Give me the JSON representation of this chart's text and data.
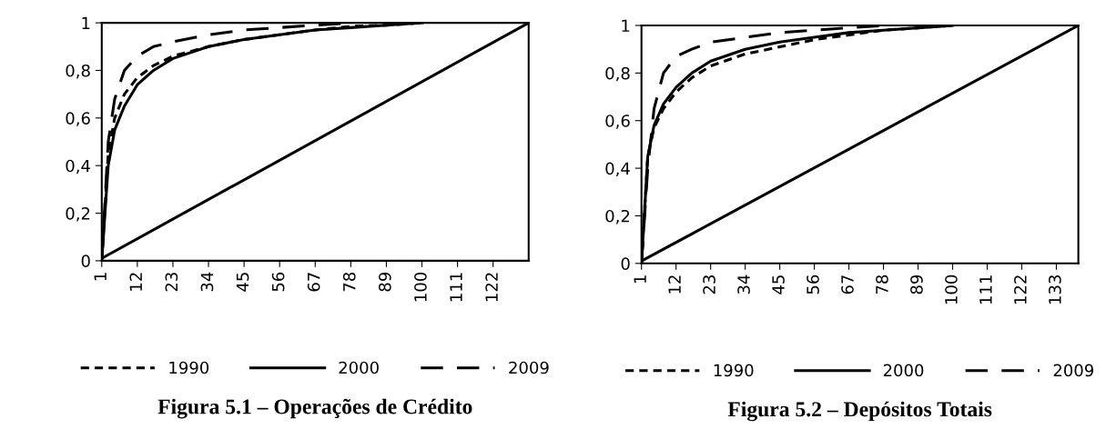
{
  "chart_data": [
    {
      "type": "line",
      "title": "Figura 5.1 – Operações de Crédito",
      "xlim": [
        1,
        133
      ],
      "ylim": [
        0,
        1
      ],
      "xticks": [
        1,
        12,
        23,
        34,
        45,
        56,
        67,
        78,
        89,
        100,
        111,
        122
      ],
      "yticks": [
        {
          "value": 0,
          "label": "0"
        },
        {
          "value": 0.2,
          "label": "0,2"
        },
        {
          "value": 0.4,
          "label": "0,4"
        },
        {
          "value": 0.6,
          "label": "0,6"
        },
        {
          "value": 0.8,
          "label": "0,8"
        },
        {
          "value": 1,
          "label": "1"
        }
      ],
      "grid": false,
      "legend": "bottom",
      "marker": "none",
      "series": [
        {
          "name": "1990",
          "color": "#000000",
          "line_style": "dotted",
          "x": [
            1,
            3,
            5,
            8,
            12,
            17,
            23,
            34,
            45,
            56,
            67,
            78,
            89,
            100
          ],
          "values": [
            0,
            0.45,
            0.6,
            0.7,
            0.77,
            0.82,
            0.86,
            0.9,
            0.93,
            0.95,
            0.97,
            0.985,
            0.99,
            1
          ]
        },
        {
          "name": "2000",
          "color": "#000000",
          "line_style": "solid",
          "x": [
            1,
            3,
            5,
            8,
            12,
            17,
            23,
            34,
            45,
            56,
            67,
            78,
            89,
            100
          ],
          "values": [
            0,
            0.4,
            0.55,
            0.65,
            0.74,
            0.8,
            0.85,
            0.9,
            0.93,
            0.95,
            0.97,
            0.98,
            0.99,
            1
          ]
        },
        {
          "name": "2009",
          "color": "#000000",
          "line_style": "dashed",
          "x": [
            1,
            3,
            5,
            8,
            12,
            17,
            23,
            34,
            45,
            56,
            67,
            78
          ],
          "values": [
            0,
            0.5,
            0.68,
            0.8,
            0.86,
            0.9,
            0.92,
            0.95,
            0.97,
            0.98,
            0.99,
            1
          ]
        },
        {
          "color": "#000000",
          "line_style": "solid",
          "x": [
            1,
            133
          ],
          "values": [
            0.01,
            1
          ]
        }
      ]
    },
    {
      "type": "line",
      "title": "Figura 5.2 – Depósitos Totais",
      "xlim": [
        1,
        140
      ],
      "ylim": [
        0,
        1
      ],
      "xticks": [
        1,
        12,
        23,
        34,
        45,
        56,
        67,
        78,
        89,
        100,
        111,
        122,
        133
      ],
      "yticks": [
        {
          "value": 0,
          "label": "0"
        },
        {
          "value": 0.2,
          "label": "0,2"
        },
        {
          "value": 0.4,
          "label": "0,4"
        },
        {
          "value": 0.6,
          "label": "0,6"
        },
        {
          "value": 0.8,
          "label": "0,8"
        },
        {
          "value": 1,
          "label": "1"
        }
      ],
      "grid": false,
      "legend": "bottom",
      "marker": "none",
      "series": [
        {
          "name": "1990",
          "color": "#000000",
          "line_style": "dotted",
          "x": [
            1,
            3,
            5,
            8,
            12,
            17,
            23,
            34,
            45,
            56,
            67,
            78,
            89,
            100
          ],
          "values": [
            0,
            0.45,
            0.57,
            0.65,
            0.72,
            0.78,
            0.83,
            0.88,
            0.91,
            0.94,
            0.96,
            0.98,
            0.99,
            1
          ]
        },
        {
          "name": "2000",
          "color": "#000000",
          "line_style": "solid",
          "x": [
            1,
            3,
            5,
            8,
            12,
            17,
            23,
            34,
            45,
            56,
            67,
            78,
            89,
            100
          ],
          "values": [
            0,
            0.45,
            0.58,
            0.67,
            0.74,
            0.8,
            0.85,
            0.9,
            0.93,
            0.95,
            0.97,
            0.98,
            0.99,
            1
          ]
        },
        {
          "name": "2009",
          "color": "#000000",
          "line_style": "dashed",
          "x": [
            1,
            3,
            5,
            8,
            12,
            17,
            23,
            34,
            45,
            56,
            67,
            78
          ],
          "values": [
            0,
            0.4,
            0.65,
            0.8,
            0.87,
            0.9,
            0.93,
            0.95,
            0.97,
            0.98,
            0.99,
            1
          ]
        },
        {
          "color": "#000000",
          "line_style": "solid",
          "x": [
            1,
            140
          ],
          "values": [
            0.01,
            1
          ]
        }
      ]
    }
  ]
}
